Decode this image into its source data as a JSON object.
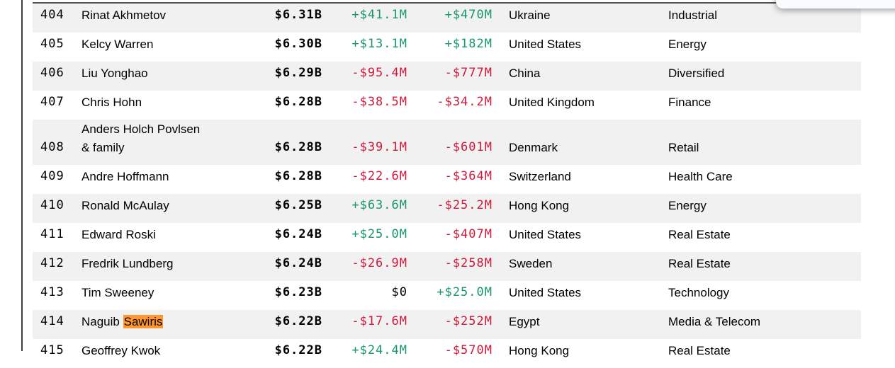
{
  "colors": {
    "positive_change": "#17966f",
    "negative_change": "#d2193c",
    "neutral_change": "#000000",
    "row_shade": "#f1f1f1",
    "search_highlight": "#ff9632"
  },
  "search": {
    "highlight_term": "Sawiris"
  },
  "table": {
    "rows": [
      {
        "rank": "404",
        "name": "Rinat Akhmetov",
        "net_worth": "$6.31B",
        "daily_change": "+$41.1M",
        "ytd_change": "+$470M",
        "country": "Ukraine",
        "industry": "Industrial"
      },
      {
        "rank": "405",
        "name": "Kelcy Warren",
        "net_worth": "$6.30B",
        "daily_change": "+$13.1M",
        "ytd_change": "+$182M",
        "country": "United States",
        "industry": "Energy"
      },
      {
        "rank": "406",
        "name": "Liu Yonghao",
        "net_worth": "$6.29B",
        "daily_change": "-$95.4M",
        "ytd_change": "-$777M",
        "country": "China",
        "industry": "Diversified"
      },
      {
        "rank": "407",
        "name": "Chris Hohn",
        "net_worth": "$6.28B",
        "daily_change": "-$38.5M",
        "ytd_change": "-$34.2M",
        "country": "United Kingdom",
        "industry": "Finance"
      },
      {
        "rank": "408",
        "name": "Anders Holch Povlsen\n& family",
        "net_worth": "$6.28B",
        "daily_change": "-$39.1M",
        "ytd_change": "-$601M",
        "country": "Denmark",
        "industry": "Retail"
      },
      {
        "rank": "409",
        "name": "Andre Hoffmann",
        "net_worth": "$6.28B",
        "daily_change": "-$22.6M",
        "ytd_change": "-$364M",
        "country": "Switzerland",
        "industry": "Health Care"
      },
      {
        "rank": "410",
        "name": "Ronald McAulay",
        "net_worth": "$6.25B",
        "daily_change": "+$63.6M",
        "ytd_change": "-$25.2M",
        "country": "Hong Kong",
        "industry": "Energy"
      },
      {
        "rank": "411",
        "name": "Edward Roski",
        "net_worth": "$6.24B",
        "daily_change": "+$25.0M",
        "ytd_change": "-$407M",
        "country": "United States",
        "industry": "Real Estate"
      },
      {
        "rank": "412",
        "name": "Fredrik Lundberg",
        "net_worth": "$6.24B",
        "daily_change": "-$26.9M",
        "ytd_change": "-$258M",
        "country": "Sweden",
        "industry": "Real Estate"
      },
      {
        "rank": "413",
        "name": "Tim Sweeney",
        "net_worth": "$6.23B",
        "daily_change": "$0",
        "ytd_change": "+$25.0M",
        "country": "United States",
        "industry": "Technology"
      },
      {
        "rank": "414",
        "name": "Naguib Sawiris",
        "highlight": "Sawiris",
        "net_worth": "$6.22B",
        "daily_change": "-$17.6M",
        "ytd_change": "-$252M",
        "country": "Egypt",
        "industry": "Media & Telecom"
      },
      {
        "rank": "415",
        "name": "Geoffrey Kwok",
        "net_worth": "$6.22B",
        "daily_change": "+$24.4M",
        "ytd_change": "-$570M",
        "country": "Hong Kong",
        "industry": "Real Estate"
      }
    ]
  }
}
